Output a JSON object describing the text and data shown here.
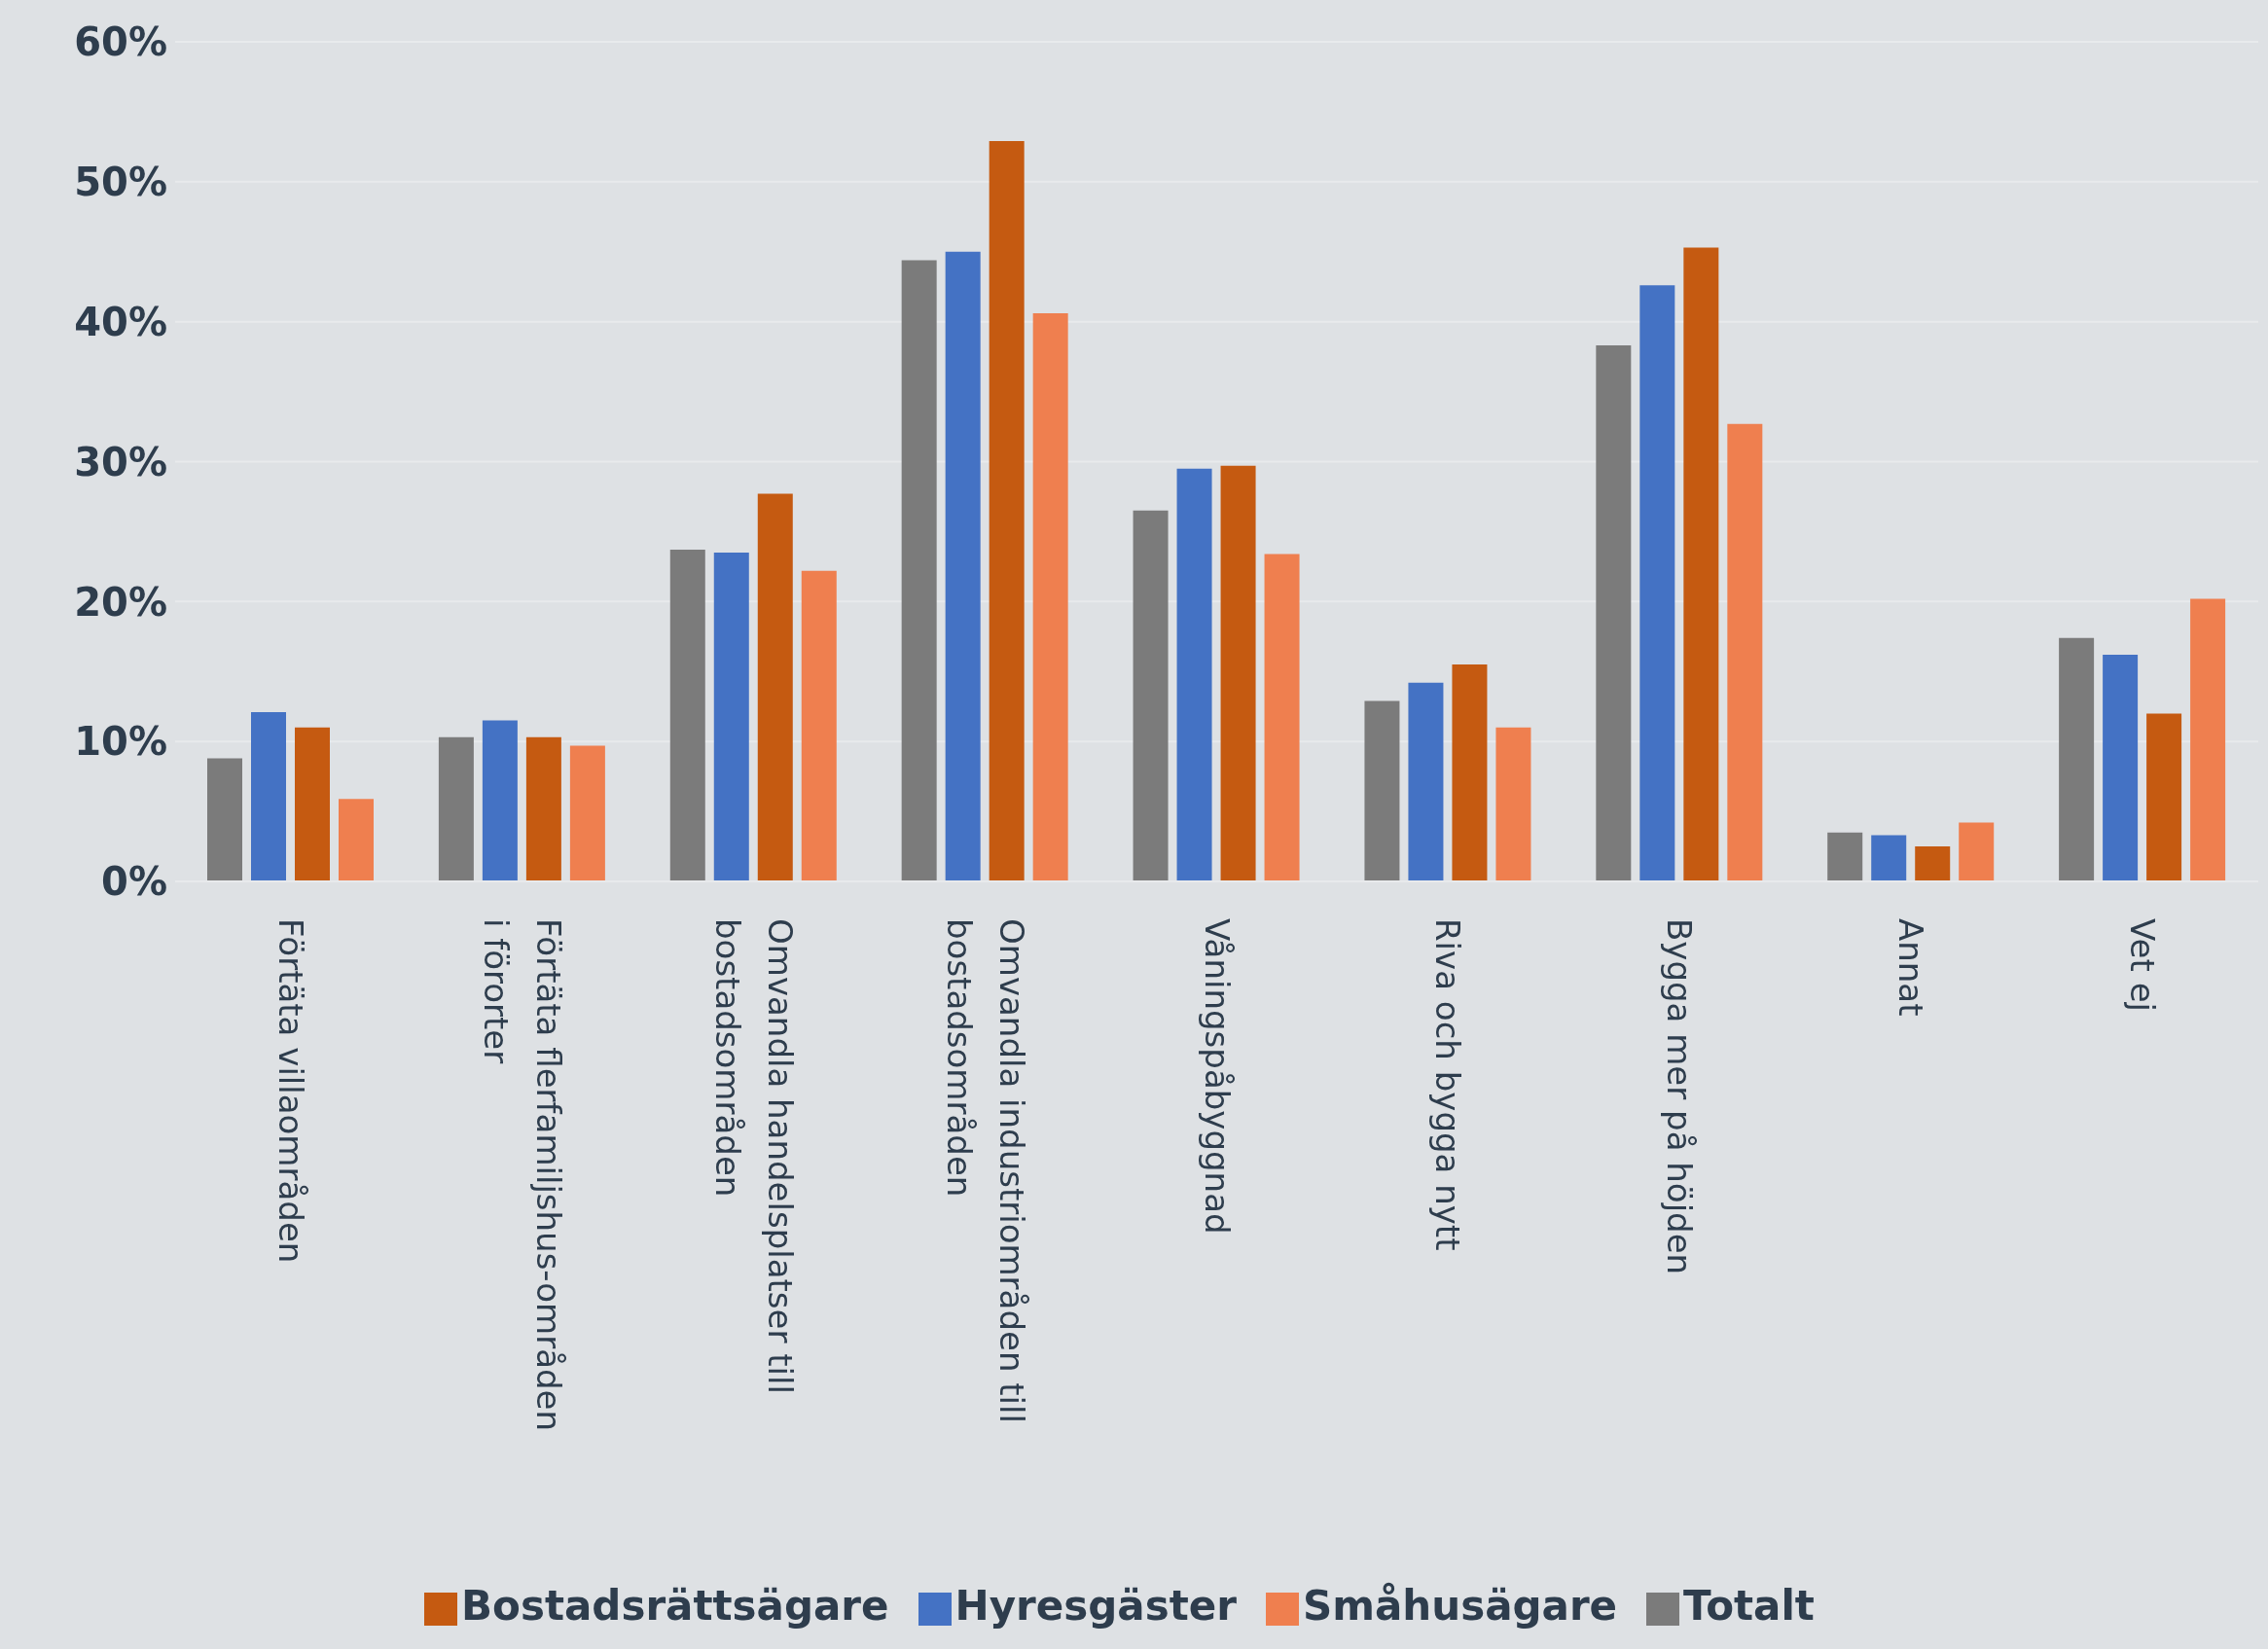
{
  "chart_data": {
    "type": "bar",
    "categories": [
      "Förtäta villaområden",
      "Förtäta flerfamiljshus-områden i förorter",
      "Omvandla handelsplatser till bostadsområden",
      "Omvandla industriområden till bostadsområden",
      "Våningspåbyggnad",
      "Riva och bygga nytt",
      "Bygga mer på höjden",
      "Annat",
      "Vet ej"
    ],
    "series": [
      {
        "name": "Totalt",
        "color": "#7b7b7b",
        "values": [
          8.8,
          10.3,
          23.7,
          44.4,
          26.5,
          12.9,
          38.3,
          3.5,
          17.4
        ]
      },
      {
        "name": "Hyresgäster",
        "color": "#4472c4",
        "values": [
          12.1,
          11.5,
          23.5,
          45.0,
          29.5,
          14.2,
          42.6,
          3.3,
          16.2
        ]
      },
      {
        "name": "Bostadsrättsägare",
        "color": "#c55a11",
        "values": [
          11.0,
          10.3,
          27.7,
          52.9,
          29.7,
          15.5,
          45.3,
          2.5,
          12.0
        ]
      },
      {
        "name": "Småhusägare",
        "color": "#ef7f4f",
        "values": [
          5.9,
          9.7,
          22.2,
          40.6,
          23.4,
          11.0,
          32.7,
          4.2,
          20.2
        ]
      }
    ],
    "ylim": [
      0,
      60
    ],
    "yticks": [
      {
        "value": 0,
        "label": "0%"
      },
      {
        "value": 10,
        "label": "10%"
      },
      {
        "value": 20,
        "label": "20%"
      },
      {
        "value": 30,
        "label": "30%"
      },
      {
        "value": 40,
        "label": "40%"
      },
      {
        "value": 50,
        "label": "50%"
      },
      {
        "value": 60,
        "label": "60%"
      }
    ],
    "grid": "y",
    "legend": "bottom"
  }
}
